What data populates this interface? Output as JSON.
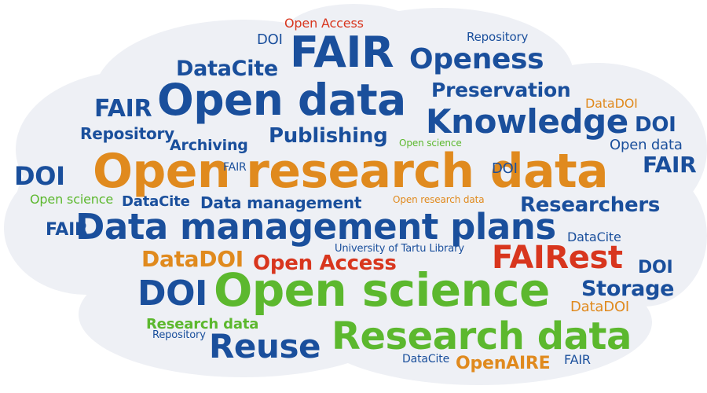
{
  "colors": {
    "blue": "#1a4f9c",
    "orange": "#e08a1e",
    "green": "#5cb82e",
    "red": "#d8361e",
    "cloud": "#eef0f5"
  },
  "words": {
    "open_research_data": "Open research data",
    "data_management_plans": "Data management plans",
    "open_data": "Open data",
    "open_science": "Open science",
    "research_data": "Research data",
    "fair": "FAIR",
    "fairest": "FAIRest",
    "knowledge": "Knowledge",
    "openess": "Openess",
    "reuse": "Reuse",
    "doi": "DOI",
    "publishing": "Publishing",
    "preservation": "Preservation",
    "researchers": "Researchers",
    "storage": "Storage",
    "datacite": "DataCite",
    "datadoi": "DataDOI",
    "open_access": "Open Access",
    "openaire": "OpenAIRE",
    "archiving": "Archiving",
    "repository": "Repository",
    "data_management": "Data management",
    "university_of_tartu_library": "University of Tartu Library"
  }
}
